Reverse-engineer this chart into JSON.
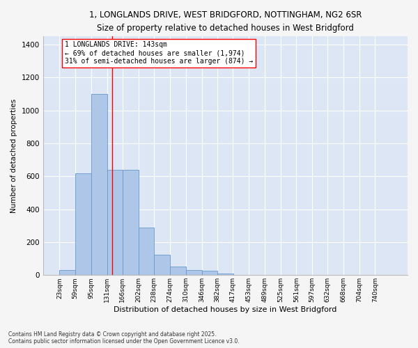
{
  "title_line1": "1, LONGLANDS DRIVE, WEST BRIDGFORD, NOTTINGHAM, NG2 6SR",
  "title_line2": "Size of property relative to detached houses in West Bridgford",
  "xlabel": "Distribution of detached houses by size in West Bridgford",
  "ylabel": "Number of detached properties",
  "bar_color": "#aec6e8",
  "bar_edge_color": "#6699cc",
  "background_color": "#dce6f5",
  "grid_color": "#ffffff",
  "fig_facecolor": "#f5f5f5",
  "annotation_text": "1 LONGLANDS DRIVE: 143sqm\n← 69% of detached houses are smaller (1,974)\n31% of semi-detached houses are larger (874) →",
  "property_line_x": 143,
  "categories": [
    "23sqm",
    "59sqm",
    "95sqm",
    "131sqm",
    "166sqm",
    "202sqm",
    "238sqm",
    "274sqm",
    "310sqm",
    "346sqm",
    "382sqm",
    "417sqm",
    "453sqm",
    "489sqm",
    "525sqm",
    "561sqm",
    "597sqm",
    "632sqm",
    "668sqm",
    "704sqm",
    "740sqm"
  ],
  "bin_edges": [
    23,
    59,
    95,
    131,
    166,
    202,
    238,
    274,
    310,
    346,
    382,
    417,
    453,
    489,
    525,
    561,
    597,
    632,
    668,
    704,
    740
  ],
  "bin_width": 36,
  "values": [
    30,
    620,
    1100,
    640,
    640,
    290,
    125,
    50,
    30,
    25,
    10,
    0,
    0,
    0,
    0,
    0,
    0,
    0,
    0,
    0,
    0
  ],
  "ylim": [
    0,
    1450
  ],
  "yticks": [
    0,
    200,
    400,
    600,
    800,
    1000,
    1200,
    1400
  ],
  "footnote": "Contains HM Land Registry data © Crown copyright and database right 2025.\nContains public sector information licensed under the Open Government Licence v3.0."
}
